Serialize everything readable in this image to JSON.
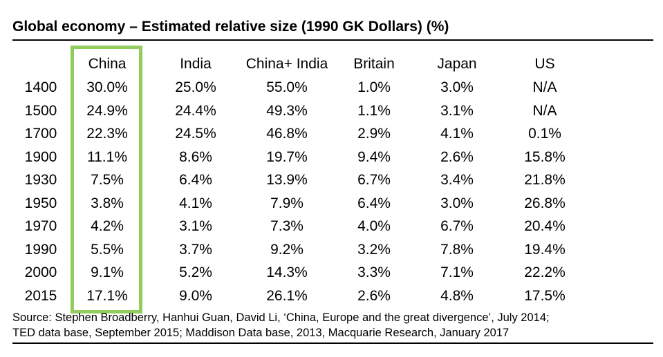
{
  "chart_data": {
    "type": "table",
    "title": "Global economy – Estimated relative size (1990 GK Dollars) (%)",
    "columns": [
      "China",
      "India",
      "China+ India",
      "Britain",
      "Japan",
      "US"
    ],
    "highlight_column": "China",
    "highlight_color": "#92cc5c",
    "rows": [
      {
        "year": "1400",
        "values": [
          "30.0%",
          "25.0%",
          "55.0%",
          "1.0%",
          "3.0%",
          "N/A"
        ]
      },
      {
        "year": "1500",
        "values": [
          "24.9%",
          "24.4%",
          "49.3%",
          "1.1%",
          "3.1%",
          "N/A"
        ]
      },
      {
        "year": "1700",
        "values": [
          "22.3%",
          "24.5%",
          "46.8%",
          "2.9%",
          "4.1%",
          "0.1%"
        ]
      },
      {
        "year": "1900",
        "values": [
          "11.1%",
          "8.6%",
          "19.7%",
          "9.4%",
          "2.6%",
          "15.8%"
        ]
      },
      {
        "year": "1930",
        "values": [
          "7.5%",
          "6.4%",
          "13.9%",
          "6.7%",
          "3.4%",
          "21.8%"
        ]
      },
      {
        "year": "1950",
        "values": [
          "3.8%",
          "4.1%",
          "7.9%",
          "6.4%",
          "3.0%",
          "26.8%"
        ]
      },
      {
        "year": "1970",
        "values": [
          "4.2%",
          "3.1%",
          "7.3%",
          "4.0%",
          "6.7%",
          "20.4%"
        ]
      },
      {
        "year": "1990",
        "values": [
          "5.5%",
          "3.7%",
          "9.2%",
          "3.2%",
          "7.8%",
          "19.4%"
        ]
      },
      {
        "year": "2000",
        "values": [
          "9.1%",
          "5.2%",
          "14.3%",
          "3.3%",
          "7.1%",
          "22.2%"
        ]
      },
      {
        "year": "2015",
        "values": [
          "17.1%",
          "9.0%",
          "26.1%",
          "2.6%",
          "4.8%",
          "17.5%"
        ]
      }
    ]
  },
  "source_line1": "Source: Stephen Broadberry, Hanhui Guan, David Li, ‘China, Europe and the great divergence’, July 2014;",
  "source_line2": "TED data base, September 2015; Maddison Data base, 2013, Macquarie Research, January 2017"
}
